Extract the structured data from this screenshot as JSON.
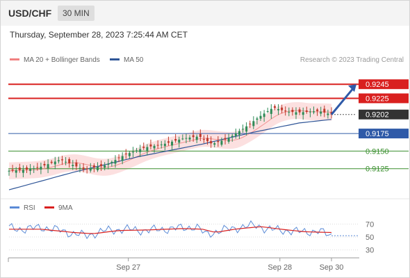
{
  "header": {
    "symbol": "USD/CHF",
    "timeframe": "30 MIN"
  },
  "datetime_text": "Thursday, September 28, 2023 7:25:44 AM CET",
  "credit": "Research © 2023 Trading Central",
  "legend": {
    "ma20": {
      "label": "MA 20 + Bollinger Bands",
      "color": "#f08080"
    },
    "ma50": {
      "label": "MA 50",
      "color": "#2f5597"
    }
  },
  "rsi_legend": {
    "rsi": {
      "label": "RSI",
      "color": "#5b8bd6"
    },
    "ma9": {
      "label": "9MA",
      "color": "#d9201f"
    }
  },
  "colors": {
    "resistance": "#d9201f",
    "pivot": "#2f5aa8",
    "support": "#3a8f2e",
    "current": "#333333",
    "candle_up": "#2e8b57",
    "candle_down": "#c0392b",
    "bands_fill": "#fbd5d5",
    "arrow": "#2f5aa8"
  },
  "chart_data": [
    {
      "type": "candlestick",
      "name": "price",
      "ylim": [
        0.9105,
        0.926
      ],
      "x_ticks": [
        "Sep 27",
        "Sep 28",
        "Sep 30"
      ],
      "x_tick_positions": [
        37,
        84,
        100
      ],
      "levels": [
        {
          "value": 0.9245,
          "label": "0.9245",
          "role": "resistance"
        },
        {
          "value": 0.9225,
          "label": "0.9225",
          "role": "resistance"
        },
        {
          "value": 0.9202,
          "label": "0.9202",
          "role": "current"
        },
        {
          "value": 0.9175,
          "label": "0.9175",
          "role": "pivot"
        },
        {
          "value": 0.915,
          "label": "0.9150",
          "role": "support"
        },
        {
          "value": 0.9125,
          "label": "0.9125",
          "role": "support"
        }
      ],
      "close_anchors": [
        [
          0,
          0.9122
        ],
        [
          6,
          0.9124
        ],
        [
          10,
          0.9128
        ],
        [
          16,
          0.9138
        ],
        [
          19,
          0.9132
        ],
        [
          23,
          0.9124
        ],
        [
          30,
          0.913
        ],
        [
          36,
          0.9145
        ],
        [
          42,
          0.9155
        ],
        [
          48,
          0.916
        ],
        [
          54,
          0.9168
        ],
        [
          59,
          0.9171
        ],
        [
          63,
          0.916
        ],
        [
          68,
          0.9168
        ],
        [
          73,
          0.9183
        ],
        [
          78,
          0.92
        ],
        [
          82,
          0.9212
        ],
        [
          86,
          0.9206
        ],
        [
          90,
          0.9205
        ],
        [
          96,
          0.9207
        ],
        [
          100,
          0.9202
        ]
      ],
      "ma50_anchors": [
        [
          0,
          0.9095
        ],
        [
          20,
          0.912
        ],
        [
          40,
          0.9142
        ],
        [
          60,
          0.916
        ],
        [
          75,
          0.9176
        ],
        [
          90,
          0.919
        ],
        [
          100,
          0.9195
        ]
      ],
      "forecast": {
        "from": 0.9202,
        "to": 0.9245
      }
    },
    {
      "type": "line",
      "name": "RSI",
      "ylim": [
        20,
        80
      ],
      "y_ticks": [
        30,
        50,
        70
      ],
      "y_tick_labels": [
        "30",
        "50",
        "70"
      ],
      "rsi_anchors": [
        [
          0,
          64
        ],
        [
          5,
          62
        ],
        [
          10,
          65
        ],
        [
          16,
          60
        ],
        [
          20,
          55
        ],
        [
          24,
          52
        ],
        [
          30,
          60
        ],
        [
          36,
          62
        ],
        [
          42,
          60
        ],
        [
          48,
          62
        ],
        [
          54,
          64
        ],
        [
          58,
          66
        ],
        [
          61,
          54
        ],
        [
          64,
          58
        ],
        [
          68,
          62
        ],
        [
          73,
          66
        ],
        [
          77,
          68
        ],
        [
          80,
          62
        ],
        [
          86,
          60
        ],
        [
          90,
          58
        ],
        [
          96,
          59
        ],
        [
          100,
          52
        ]
      ],
      "ma9_anchors": [
        [
          0,
          62
        ],
        [
          10,
          62
        ],
        [
          20,
          57
        ],
        [
          26,
          55
        ],
        [
          34,
          60
        ],
        [
          44,
          61
        ],
        [
          54,
          63
        ],
        [
          60,
          62
        ],
        [
          64,
          57
        ],
        [
          70,
          62
        ],
        [
          78,
          66
        ],
        [
          86,
          61
        ],
        [
          92,
          58
        ],
        [
          100,
          57
        ]
      ]
    }
  ]
}
